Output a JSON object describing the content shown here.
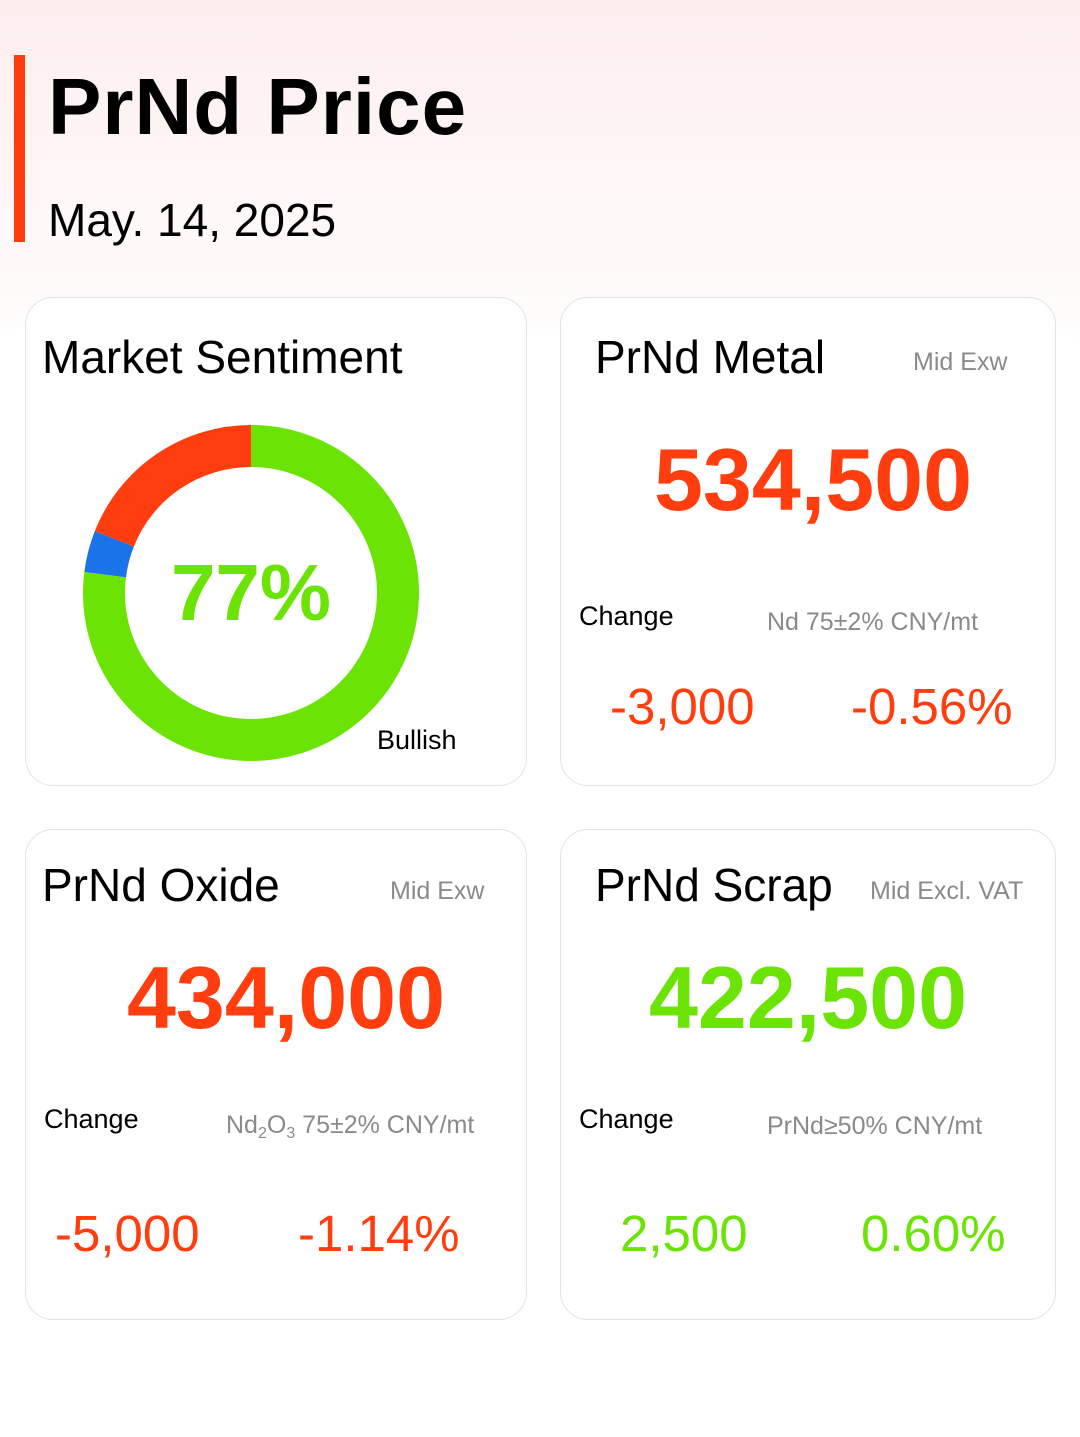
{
  "header": {
    "title": "PrNd Price",
    "date": "May. 14, 2025"
  },
  "sentiment": {
    "title": "Market Sentiment",
    "percent_label": "77%",
    "label": "Bullish",
    "segments": [
      {
        "name": "bullish",
        "value": 77,
        "color": "#6be304"
      },
      {
        "name": "neutral",
        "value": 4,
        "color": "#1a73e8"
      },
      {
        "name": "bearish",
        "value": 19,
        "color": "#ff3d0e"
      }
    ]
  },
  "metal": {
    "title": "PrNd Metal",
    "tag": "Mid  Exw",
    "price": "534,500",
    "change_label": "Change",
    "spec": "Nd 75±2% CNY/mt",
    "change_abs": "-3,000",
    "change_pct": "-0.56%"
  },
  "oxide": {
    "title": "PrNd Oxide",
    "tag": "Mid  Exw",
    "price": "434,000",
    "change_label": "Change",
    "spec_a": "Nd",
    "spec_sub1": "2",
    "spec_b": "O",
    "spec_sub2": "3",
    "spec_c": " 75±2% CNY/mt",
    "change_abs": "-5,000",
    "change_pct": "-1.14%"
  },
  "scrap": {
    "title": "PrNd Scrap",
    "tag": "Mid  Excl. VAT",
    "price": "422,500",
    "change_label": "Change",
    "spec": "PrNd≥50% CNY/mt",
    "change_abs": "2,500",
    "change_pct": "0.60%"
  }
}
